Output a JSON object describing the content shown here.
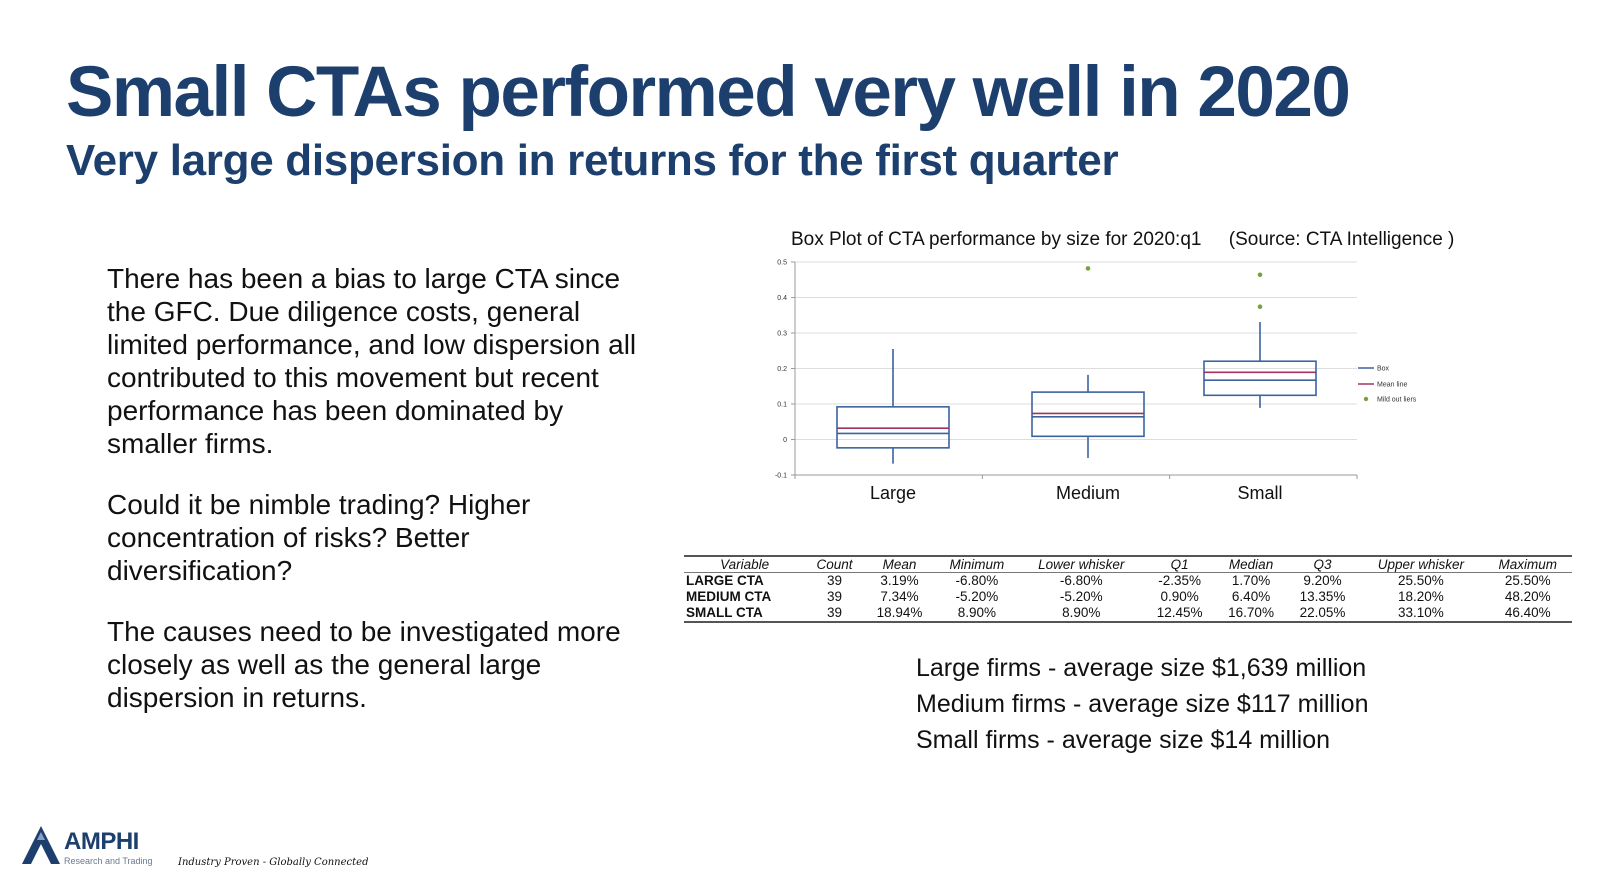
{
  "slide": {
    "title": "Small CTAs performed very well in 2020",
    "subtitle": "Very large dispersion in returns for the first quarter"
  },
  "body": {
    "paragraphs": [
      "There has been a bias to large CTA since the GFC. Due diligence costs, general limited performance, and low dispersion all contributed to this movement but recent performance has been dominated by smaller firms.",
      "Could it be nimble trading? Higher concentration of risks? Better diversification?",
      "The causes need to be investigated more closely as well as the general large dispersion in returns."
    ]
  },
  "chart_data": {
    "type": "box",
    "title": "Box Plot of CTA performance by size for 2020:q1",
    "source": "(Source: CTA Intelligence )",
    "categories": [
      "Large",
      "Medium",
      "Small"
    ],
    "ylim": [
      -0.1,
      0.5
    ],
    "yticks": [
      -0.1,
      0,
      0.1,
      0.2,
      0.3,
      0.4,
      0.5
    ],
    "ytick_labels": [
      "-0.1",
      "0",
      "0.1",
      "0.2",
      "0.3",
      "0.4",
      "0.5"
    ],
    "boxes": [
      {
        "name": "Large",
        "lower_whisker": -0.068,
        "q1": -0.0235,
        "median": 0.017,
        "mean": 0.0319,
        "q3": 0.092,
        "upper_whisker": 0.255,
        "outliers": []
      },
      {
        "name": "Medium",
        "lower_whisker": -0.052,
        "q1": 0.009,
        "median": 0.064,
        "mean": 0.0734,
        "q3": 0.1335,
        "upper_whisker": 0.182,
        "outliers": [
          0.482
        ]
      },
      {
        "name": "Small",
        "lower_whisker": 0.089,
        "q1": 0.1245,
        "median": 0.167,
        "mean": 0.1894,
        "q3": 0.2205,
        "upper_whisker": 0.331,
        "outliers": [
          0.464,
          0.374
        ]
      }
    ],
    "legend": [
      "Box",
      "Mean line",
      "Mild out liers"
    ],
    "legend_position": "right",
    "grid": true,
    "colors": {
      "box": "#3b63a0",
      "mean": "#a0345e",
      "outlier": "#77a040",
      "grid": "#dddddd",
      "axis": "#999999"
    }
  },
  "table": {
    "columns": [
      "Variable",
      "Count",
      "Mean",
      "Minimum",
      "Lower whisker",
      "Q1",
      "Median",
      "Q3",
      "Upper whisker",
      "Maximum"
    ],
    "rows": [
      [
        "LARGE CTA",
        "39",
        "3.19%",
        "-6.80%",
        "-6.80%",
        "-2.35%",
        "1.70%",
        "9.20%",
        "25.50%",
        "25.50%"
      ],
      [
        "MEDIUM CTA",
        "39",
        "7.34%",
        "-5.20%",
        "-5.20%",
        "0.90%",
        "6.40%",
        "13.35%",
        "18.20%",
        "48.20%"
      ],
      [
        "SMALL CTA",
        "39",
        "18.94%",
        "8.90%",
        "8.90%",
        "12.45%",
        "16.70%",
        "22.05%",
        "33.10%",
        "46.40%"
      ]
    ]
  },
  "sizes": [
    "Large firms - average size $1,639 million",
    "Medium firms - average size $117 million",
    "Small firms - average size $14 million"
  ],
  "logo": {
    "brand": "AMPHI",
    "brand_sub": "Research and Trading",
    "tagline": "Industry Proven - Globally Connected"
  },
  "colors": {
    "title": "#1c3f6e"
  }
}
